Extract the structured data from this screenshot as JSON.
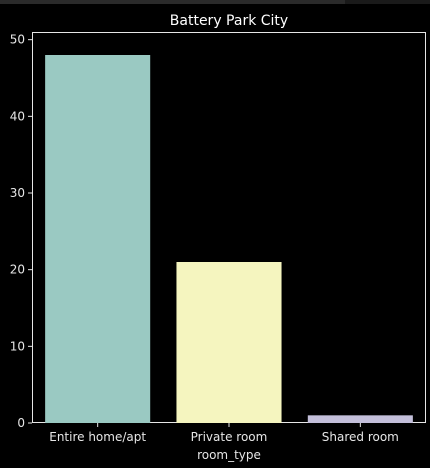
{
  "chart_data": {
    "type": "bar",
    "title": "Battery Park City",
    "xlabel": "room_type",
    "ylabel": "",
    "categories": [
      "Entire home/apt",
      "Private room",
      "Shared room"
    ],
    "values": [
      48,
      21,
      1
    ],
    "ylim": [
      0,
      51
    ],
    "yticks": [
      0,
      10,
      20,
      30,
      40,
      50
    ],
    "colors": [
      "#9ac9c2",
      "#f5f5bf",
      "#c3bfda"
    ],
    "background": "#000000",
    "grid": false
  }
}
